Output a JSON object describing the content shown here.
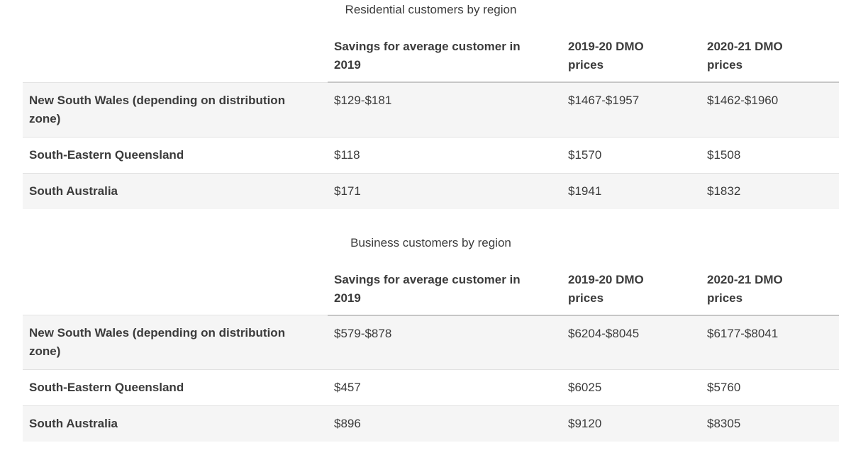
{
  "style": {
    "text_color": "#3b3b3b",
    "stripe_background": "#f5f5f5",
    "row_border": "#e1e1e1",
    "header_border": "#c6c6c6",
    "empty_header_border": "#e3e3e3"
  },
  "tables": [
    {
      "caption": "Residential customers by region",
      "columns": [
        "",
        "Savings for average customer in 2019",
        "2019-20 DMO prices",
        "2020-21 DMO prices"
      ],
      "rows": [
        {
          "label": "New South Wales (depending on distribution zone)",
          "values": [
            "$129-$181",
            "$1467-$1957",
            "$1462-$1960"
          ]
        },
        {
          "label": "South-Eastern Queensland",
          "values": [
            "$118",
            "$1570",
            "$1508"
          ]
        },
        {
          "label": "South Australia",
          "values": [
            "$171",
            "$1941",
            "$1832"
          ]
        }
      ]
    },
    {
      "caption": "Business customers by region",
      "columns": [
        "",
        "Savings for average customer in 2019",
        "2019-20 DMO prices",
        "2020-21 DMO prices"
      ],
      "rows": [
        {
          "label": "New South Wales (depending on distribution zone)",
          "values": [
            "$579-$878",
            "$6204-$8045",
            "$6177-$8041"
          ]
        },
        {
          "label": "South-Eastern Queensland",
          "values": [
            "$457",
            "$6025",
            "$5760"
          ]
        },
        {
          "label": "South Australia",
          "values": [
            "$896",
            "$9120",
            "$8305"
          ]
        }
      ]
    }
  ]
}
